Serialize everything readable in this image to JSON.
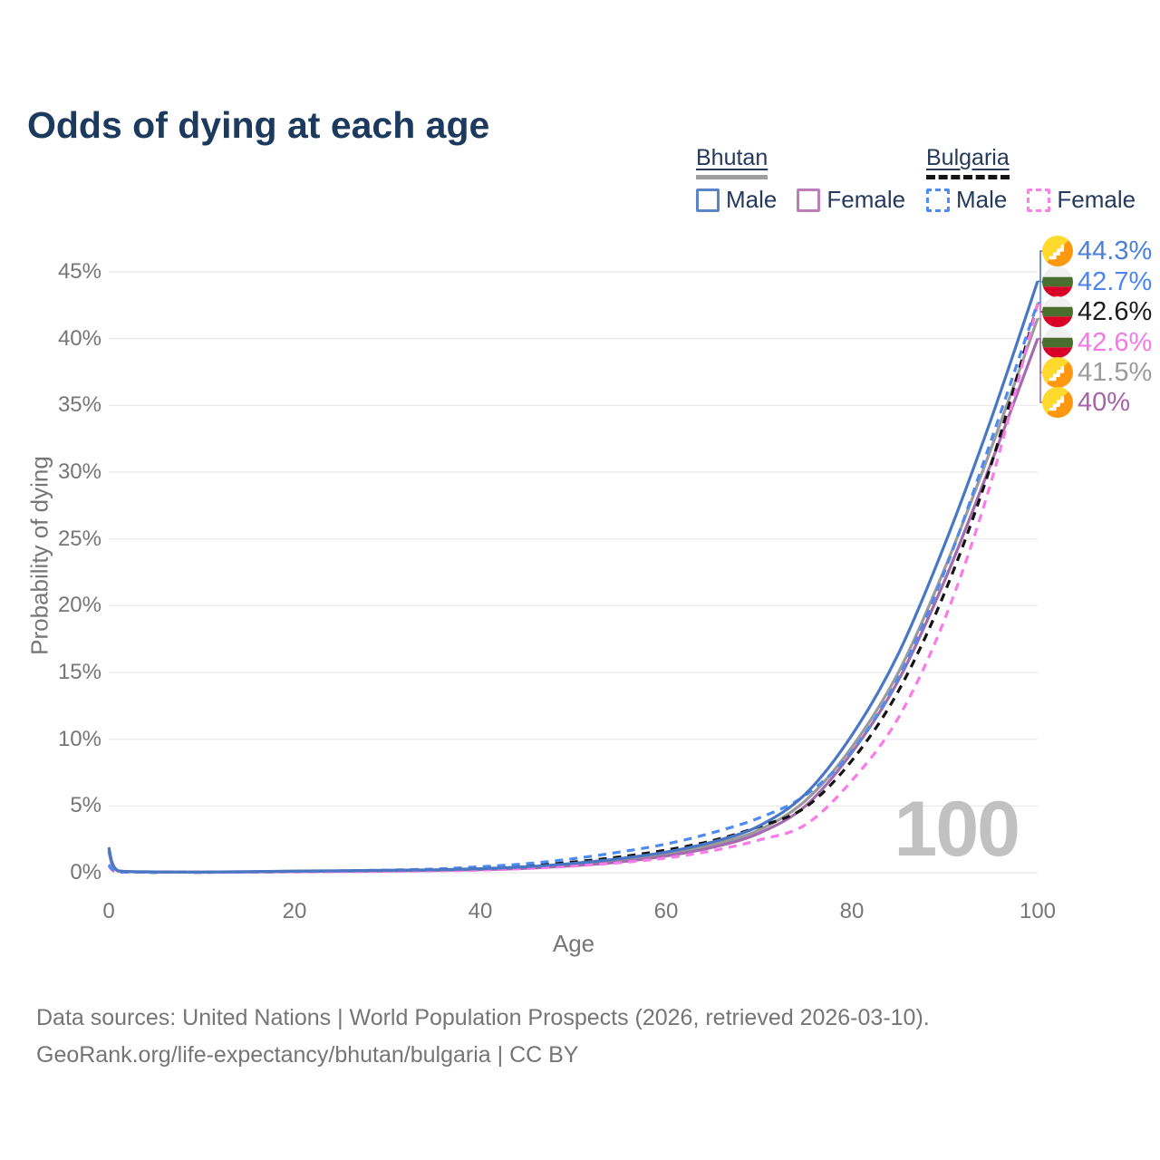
{
  "title": "Odds of dying at each age",
  "watermark_hovered_age": "100",
  "colors": {
    "title": "#1c3a5e",
    "axis_text": "#767676",
    "legend_text": "#24395c",
    "gridline": "#ececec",
    "watermark": "#c1c1c1",
    "footer_text": "#757575"
  },
  "legend": {
    "groups": [
      {
        "id": "bhutan",
        "country": "Bhutan",
        "line_style": "solid",
        "line_color": "#9e9e9e",
        "items": [
          {
            "id": "male",
            "label": "Male",
            "swatch_style": "solid",
            "swatch_color": "#5b84c8"
          },
          {
            "id": "female",
            "label": "Female",
            "swatch_style": "solid",
            "swatch_color": "#bd7cba"
          }
        ]
      },
      {
        "id": "bulgaria",
        "country": "Bulgaria",
        "line_style": "dashed",
        "line_color": "#141414",
        "items": [
          {
            "id": "male",
            "label": "Male",
            "swatch_style": "dashed",
            "swatch_color": "#4d8bf0"
          },
          {
            "id": "female",
            "label": "Female",
            "swatch_style": "dashed",
            "swatch_color": "#fb80ea"
          }
        ]
      }
    ]
  },
  "chart_data": {
    "type": "line",
    "title": "Odds of dying at each age",
    "axes": {
      "x_label": "Age",
      "y_label": "Probability of dying",
      "x_range": [
        0,
        100
      ],
      "y_range_percent": [
        0,
        45
      ],
      "grid": "horizontal",
      "x_ticks": [
        {
          "value": 0,
          "label": "0"
        },
        {
          "value": 20,
          "label": "20"
        },
        {
          "value": 40,
          "label": "40"
        },
        {
          "value": 60,
          "label": "60"
        },
        {
          "value": 80,
          "label": "80"
        },
        {
          "value": 100,
          "label": "100"
        }
      ],
      "y_ticks": [
        {
          "value": 0,
          "label": "0%"
        },
        {
          "value": 5,
          "label": "5%"
        },
        {
          "value": 10,
          "label": "10%"
        },
        {
          "value": 15,
          "label": "15%"
        },
        {
          "value": 20,
          "label": "20%"
        },
        {
          "value": 25,
          "label": "25%"
        },
        {
          "value": 30,
          "label": "30%"
        },
        {
          "value": 35,
          "label": "35%"
        },
        {
          "value": 40,
          "label": "40%"
        },
        {
          "value": 45,
          "label": "45%"
        }
      ]
    },
    "x": [
      0,
      1,
      5,
      10,
      15,
      20,
      25,
      30,
      35,
      40,
      45,
      50,
      55,
      60,
      65,
      70,
      75,
      80,
      85,
      90,
      95,
      100
    ],
    "series": [
      {
        "id": "bhutan-both",
        "name": "Bhutan Both sexes",
        "country": "Bhutan",
        "sex": "Both",
        "style": "solid",
        "color": "#9b9b9b",
        "values": [
          1.75,
          0.14,
          0.06,
          0.05,
          0.07,
          0.11,
          0.13,
          0.16,
          0.2,
          0.27,
          0.4,
          0.62,
          0.92,
          1.4,
          2.1,
          3.2,
          5.4,
          9.4,
          15.0,
          22.8,
          31.8,
          41.5
        ]
      },
      {
        "id": "bhutan-female",
        "name": "Bhutan Female",
        "country": "Bhutan",
        "sex": "Female",
        "style": "solid",
        "color": "#a36bae",
        "values": [
          1.6,
          0.12,
          0.05,
          0.04,
          0.06,
          0.09,
          0.11,
          0.13,
          0.17,
          0.23,
          0.33,
          0.52,
          0.8,
          1.25,
          1.9,
          2.95,
          5.0,
          9.0,
          14.4,
          21.9,
          30.7,
          40.0
        ]
      },
      {
        "id": "bulgaria-both",
        "name": "Bulgaria Both sexes",
        "country": "Bulgaria",
        "sex": "Both",
        "style": "dashed",
        "color": "#141414",
        "values": [
          0.55,
          0.05,
          0.03,
          0.03,
          0.05,
          0.08,
          0.11,
          0.15,
          0.21,
          0.33,
          0.5,
          0.8,
          1.18,
          1.7,
          2.4,
          3.45,
          4.9,
          8.4,
          13.6,
          21.0,
          30.6,
          42.6
        ]
      },
      {
        "id": "bulgaria-female",
        "name": "Bulgaria Female",
        "country": "Bulgaria",
        "sex": "Female",
        "style": "dashed",
        "color": "#fa7ae8",
        "values": [
          0.5,
          0.05,
          0.02,
          0.02,
          0.04,
          0.06,
          0.08,
          0.1,
          0.14,
          0.2,
          0.31,
          0.5,
          0.75,
          1.1,
          1.65,
          2.45,
          3.6,
          6.9,
          11.6,
          19.0,
          29.3,
          42.6
        ]
      },
      {
        "id": "bulgaria-male",
        "name": "Bulgaria Male",
        "country": "Bulgaria",
        "sex": "Male",
        "style": "dashed",
        "color": "#4d8bf0",
        "values": [
          0.6,
          0.06,
          0.03,
          0.03,
          0.06,
          0.1,
          0.14,
          0.2,
          0.28,
          0.45,
          0.68,
          1.05,
          1.55,
          2.15,
          3.0,
          4.1,
          5.8,
          9.1,
          14.6,
          22.6,
          32.4,
          42.7
        ]
      },
      {
        "id": "bhutan-male",
        "name": "Bhutan Male",
        "country": "Bhutan",
        "sex": "Male",
        "style": "solid",
        "color": "#4a77c4",
        "values": [
          1.9,
          0.15,
          0.06,
          0.05,
          0.08,
          0.12,
          0.15,
          0.18,
          0.22,
          0.3,
          0.45,
          0.7,
          1.05,
          1.55,
          2.3,
          3.5,
          5.9,
          10.3,
          16.4,
          24.6,
          34.0,
          44.3
        ]
      }
    ],
    "end_labels": [
      {
        "text": "44.3%",
        "series": "Bhutan Male",
        "color": "#4b80d9",
        "flag": "bhutan"
      },
      {
        "text": "42.7%",
        "series": "Bulgaria Male",
        "color": "#4b86ef",
        "flag": "bulgaria"
      },
      {
        "text": "42.6%",
        "series": "Bulgaria Both sexes",
        "color": "#1c1c1c",
        "flag": "bulgaria"
      },
      {
        "text": "42.6%",
        "series": "Bulgaria Female",
        "color": "#f678e8",
        "flag": "bulgaria"
      },
      {
        "text": "41.5%",
        "series": "Bhutan Both sexes",
        "color": "#9b9b9b",
        "flag": "bhutan"
      },
      {
        "text": "40%",
        "series": "Bhutan Female",
        "color": "#a763aa",
        "flag": "bhutan"
      }
    ],
    "annotations": {
      "hovered_age": "100"
    }
  },
  "footer": {
    "line1": "Data sources: United Nations | World Population Prospects (2026, retrieved 2026-03-10).",
    "line2": "GeoRank.org/life-expectancy/bhutan/bulgaria | CC BY"
  }
}
